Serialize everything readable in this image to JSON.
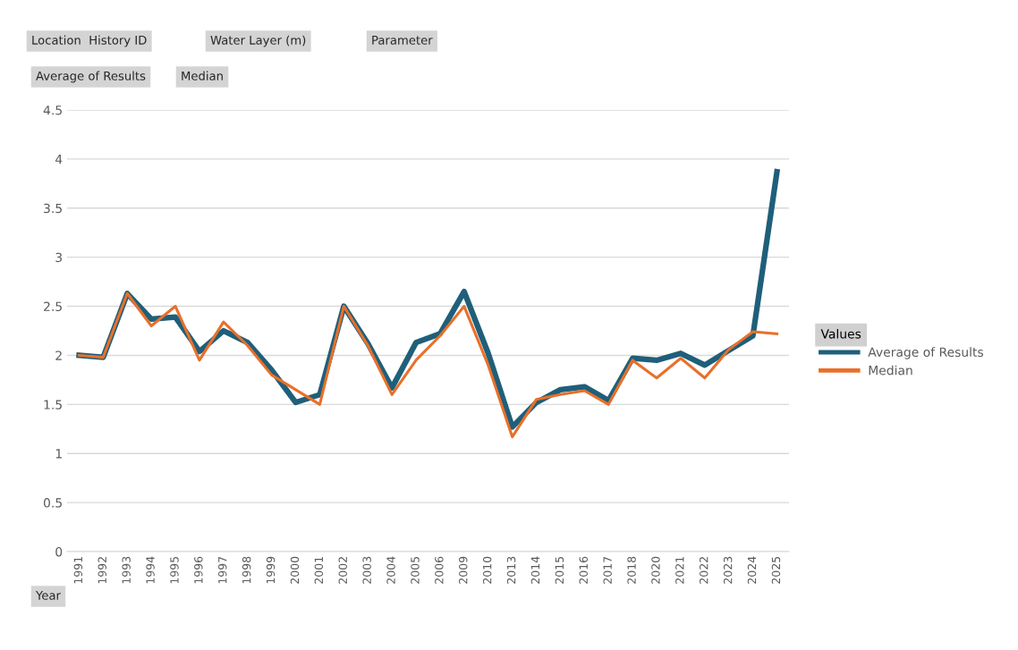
{
  "chart_data": {
    "type": "line",
    "categories": [
      "1991",
      "1992",
      "1993",
      "1994",
      "1995",
      "1996",
      "1997",
      "1998",
      "1999",
      "2000",
      "2001",
      "2002",
      "2003",
      "2004",
      "2005",
      "2006",
      "2009",
      "2010",
      "2013",
      "2014",
      "2015",
      "2016",
      "2017",
      "2018",
      "2020",
      "2021",
      "2022",
      "2023",
      "2024",
      "2025"
    ],
    "series": [
      {
        "name": "Average of Results",
        "color": "#1f5f7a",
        "values": [
          2.0,
          1.98,
          2.63,
          2.37,
          2.39,
          2.04,
          2.25,
          2.13,
          1.85,
          1.52,
          1.6,
          2.5,
          2.12,
          1.67,
          2.13,
          2.22,
          2.65,
          2.02,
          1.27,
          1.52,
          1.65,
          1.68,
          1.54,
          1.97,
          1.95,
          2.02,
          1.9,
          2.05,
          2.2,
          3.87
        ]
      },
      {
        "name": "Median",
        "color": "#e8702a",
        "values": [
          2.0,
          1.98,
          2.63,
          2.3,
          2.5,
          1.95,
          2.34,
          2.1,
          1.8,
          1.65,
          1.5,
          2.5,
          2.1,
          1.6,
          1.95,
          2.2,
          2.5,
          1.9,
          1.17,
          1.55,
          1.6,
          1.64,
          1.5,
          1.95,
          1.77,
          1.97,
          1.77,
          2.06,
          2.24,
          2.22
        ]
      }
    ],
    "ylim": [
      0,
      4.5
    ],
    "yticks": [
      0,
      0.5,
      1,
      1.5,
      2,
      2.5,
      3,
      3.5,
      4,
      4.5
    ],
    "grid": "y",
    "legend": "right",
    "legend_title": "Values",
    "marker": "none",
    "line_style": "solid",
    "annotations": [
      "Location  History ID",
      "Water Layer (m)",
      "Parameter",
      "Average of Results",
      "Median",
      "Year"
    ]
  }
}
